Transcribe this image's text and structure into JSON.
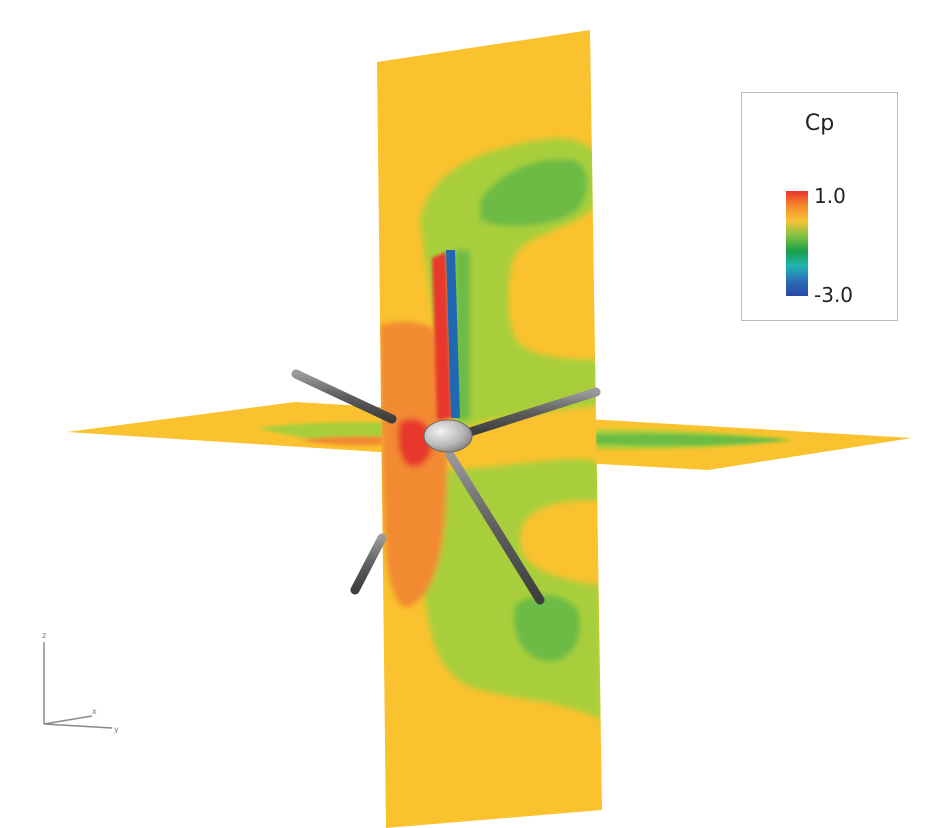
{
  "legend": {
    "title": "Cp",
    "max_label": "1.0",
    "min_label": "-3.0",
    "colormap": [
      "#e8322d",
      "#f58a2c",
      "#f7c236",
      "#7dc242",
      "#1a9f4a",
      "#21b3b1",
      "#2b6fb8",
      "#2846a8"
    ]
  },
  "axes_triad": {
    "labels": [
      "z",
      "y",
      "x"
    ]
  },
  "colors": {
    "freestream": "#f9c22e",
    "high_pressure": "#e8372e",
    "mid_high": "#f28a31",
    "mid": "#a8cf3a",
    "low": "#6cbb45",
    "lowest": "#1f69b4",
    "blade": "#6d6d6d",
    "hub": "#bdbdbd"
  }
}
